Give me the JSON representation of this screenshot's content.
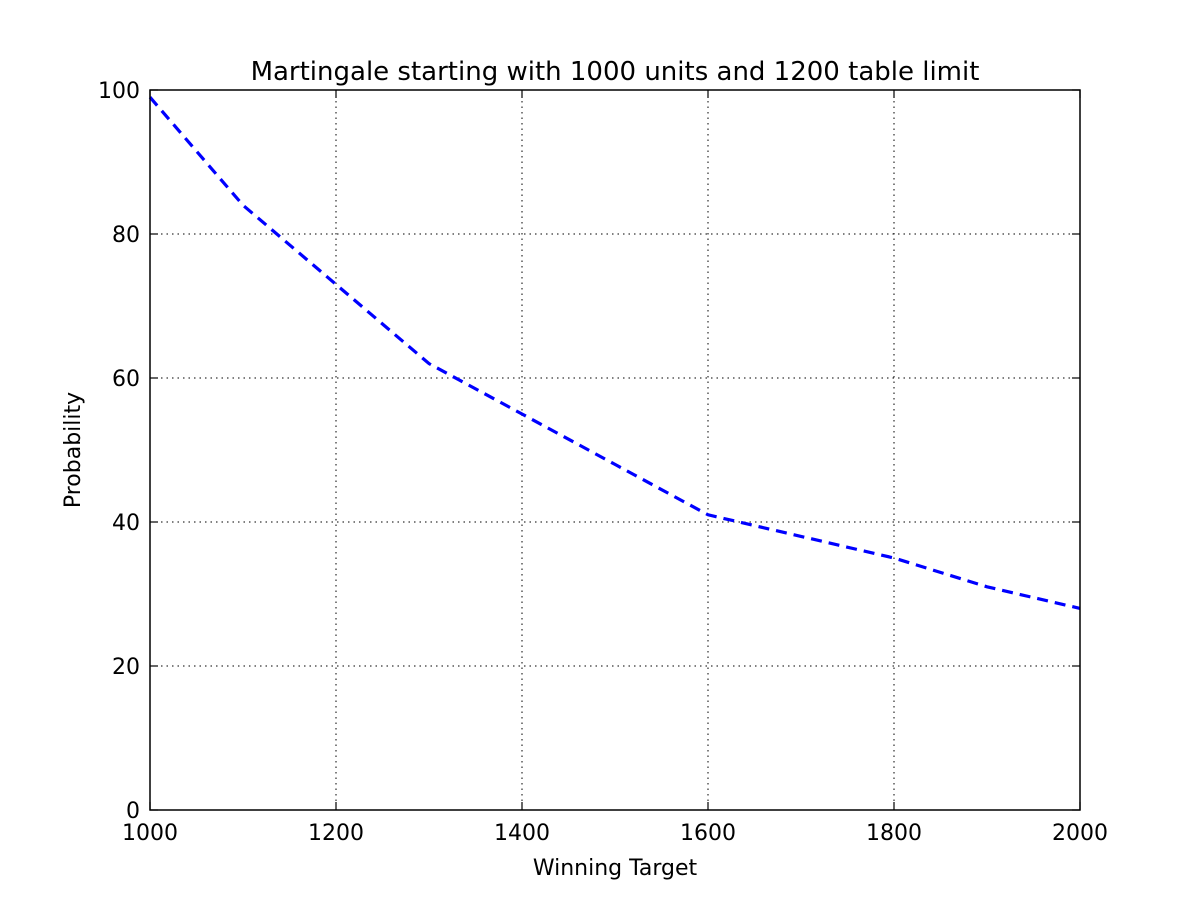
{
  "chart_data": {
    "type": "line",
    "title": "Martingale starting with 1000 units and 1200 table limit",
    "xlabel": "Winning Target",
    "ylabel": "Probability",
    "xlim": [
      1000,
      2000
    ],
    "ylim": [
      0,
      100
    ],
    "xticks": [
      1000,
      1200,
      1400,
      1600,
      1800,
      2000
    ],
    "yticks": [
      0,
      20,
      40,
      60,
      80,
      100
    ],
    "xtick_labels": [
      "1000",
      "1200",
      "1400",
      "1600",
      "1800",
      "2000"
    ],
    "ytick_labels": [
      "0",
      "20",
      "40",
      "60",
      "80",
      "100"
    ],
    "grid": true,
    "grid_style": "dotted",
    "series": [
      {
        "color": "#0000ff",
        "line_style": "dashed",
        "x": [
          1000,
          1100,
          1200,
          1300,
          1400,
          1500,
          1600,
          1700,
          1800,
          1900,
          2000
        ],
        "y": [
          99.0,
          84.0,
          73.0,
          62.0,
          55.0,
          48.0,
          41.0,
          38.0,
          35.0,
          31.0,
          28.0
        ]
      }
    ]
  }
}
